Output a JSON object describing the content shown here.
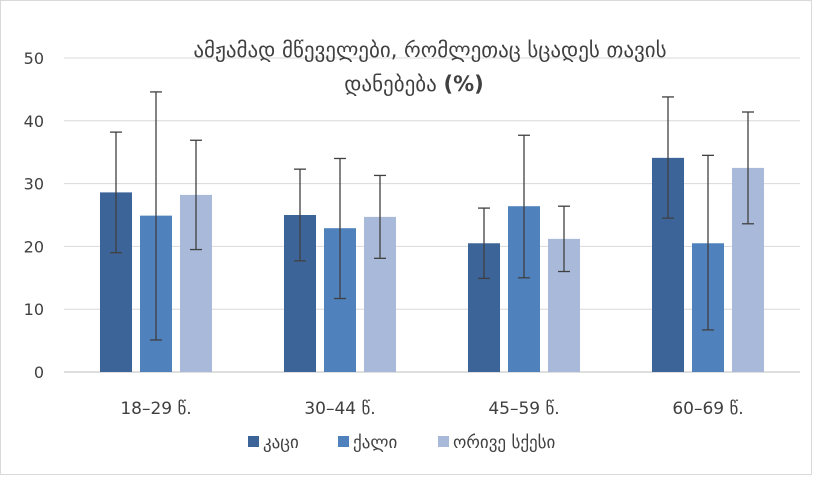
{
  "chart_data": {
    "type": "bar",
    "title_line1": "ამჟამად მწეველები, რომლეთაც სცადეს თავის",
    "title_line2_main": "დანებება",
    "title_line2_bold": "(%)",
    "categories": [
      "18–29 წ.",
      "30–44 წ.",
      "45–59 წ.",
      "60–69 წ."
    ],
    "series": [
      {
        "name": "კაცი",
        "color": "#3c6499",
        "values": [
          28.6,
          25.0,
          20.5,
          34.1
        ],
        "err_low": [
          19.0,
          17.7,
          14.9,
          24.5
        ],
        "err_high": [
          38.2,
          32.3,
          26.1,
          43.8
        ]
      },
      {
        "name": "ქალი",
        "color": "#4f81bd",
        "values": [
          24.9,
          22.9,
          26.4,
          20.5
        ],
        "err_low": [
          5.1,
          11.7,
          15.0,
          6.7
        ],
        "err_high": [
          44.6,
          34.0,
          37.7,
          34.5
        ]
      },
      {
        "name": "ორივე სქესი",
        "color": "#a9b9d9",
        "values": [
          28.2,
          24.7,
          21.2,
          32.5
        ],
        "err_low": [
          19.5,
          18.1,
          16.0,
          23.6
        ],
        "err_high": [
          36.9,
          31.3,
          26.4,
          41.4
        ]
      }
    ],
    "ylim": [
      0,
      50
    ],
    "yticks": [
      0,
      10,
      20,
      30,
      40,
      50
    ],
    "grid": true,
    "legend": "bottom"
  }
}
